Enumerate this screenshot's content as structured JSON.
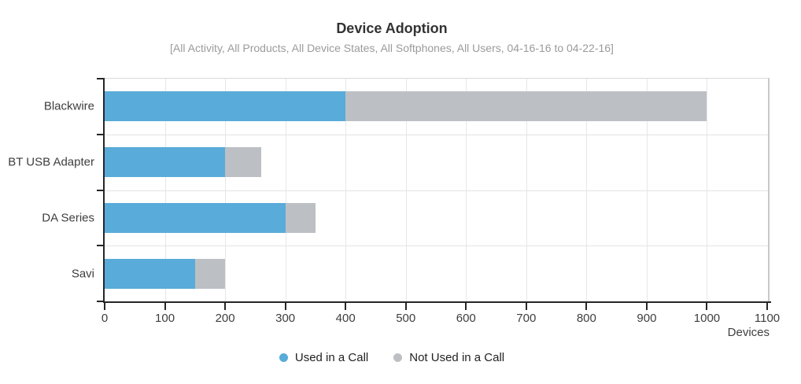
{
  "header": {
    "title": "Device Adoption",
    "subtitle": "[All Activity, All Products, All Device States, All Softphones, All Users, 04-16-16 to 04-22-16]"
  },
  "chart_data": {
    "type": "bar",
    "orientation": "horizontal",
    "stacked": true,
    "title": "Device Adoption",
    "subtitle": "[All Activity, All Products, All Device States, All Softphones, All Users, 04-16-16 to 04-22-16]",
    "categories": [
      "Blackwire",
      "BT USB Adapter",
      "DA Series",
      "Savi"
    ],
    "series": [
      {
        "name": "Used in a Call",
        "color": "#59abd9",
        "values": [
          400,
          200,
          300,
          150
        ]
      },
      {
        "name": "Not Used in a Call",
        "color": "#bcc0c4",
        "values": [
          600,
          60,
          50,
          50
        ]
      }
    ],
    "totals": [
      1000,
      260,
      350,
      200
    ],
    "xlabel": "Devices",
    "ylabel": "",
    "xlim": [
      0,
      1100
    ],
    "xticks": [
      0,
      100,
      200,
      300,
      400,
      500,
      600,
      700,
      800,
      900,
      1000,
      1100
    ],
    "grid": true,
    "legend_position": "bottom"
  }
}
